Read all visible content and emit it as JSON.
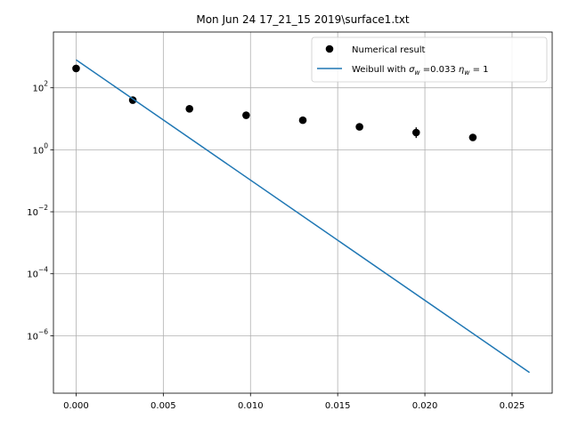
{
  "chart_data": {
    "type": "scatter",
    "title": "Mon Jun 24 17_21_15 2019\\surface1.txt",
    "xlabel": "",
    "ylabel": "",
    "y_scale": "log",
    "xlim": [
      -0.0013,
      0.0273
    ],
    "ylim": [
      1.4e-08,
      6300
    ],
    "x_ticks": [
      {
        "value": 0.0,
        "label": "0.000"
      },
      {
        "value": 0.005,
        "label": "0.005"
      },
      {
        "value": 0.01,
        "label": "0.010"
      },
      {
        "value": 0.015,
        "label": "0.015"
      },
      {
        "value": 0.02,
        "label": "0.020"
      },
      {
        "value": 0.025,
        "label": "0.025"
      }
    ],
    "y_ticks": [
      {
        "exp": 2,
        "base": "10",
        "exponent_label": "2"
      },
      {
        "exp": 0,
        "base": "10",
        "exponent_label": "0"
      },
      {
        "exp": -2,
        "base": "10",
        "exponent_label": "−2"
      },
      {
        "exp": -4,
        "base": "10",
        "exponent_label": "−4"
      },
      {
        "exp": -6,
        "base": "10",
        "exponent_label": "−6"
      }
    ],
    "grid": true,
    "legend_position": "top-right",
    "series": [
      {
        "name": "Numerical result",
        "kind": "points",
        "color": "#000000",
        "points": [
          {
            "x": 0.0,
            "y": 420,
            "err_low": 380,
            "err_high": 470
          },
          {
            "x": 0.00325,
            "y": 40,
            "err_low": 35,
            "err_high": 46
          },
          {
            "x": 0.0065,
            "y": 21,
            "err_low": 19,
            "err_high": 23
          },
          {
            "x": 0.00975,
            "y": 13,
            "err_low": 10.5,
            "err_high": 16
          },
          {
            "x": 0.013,
            "y": 9,
            "err_low": 7.2,
            "err_high": 11
          },
          {
            "x": 0.01625,
            "y": 5.5,
            "err_low": 5.0,
            "err_high": 6.0
          },
          {
            "x": 0.0195,
            "y": 3.6,
            "err_low": 2.4,
            "err_high": 5.3
          },
          {
            "x": 0.02275,
            "y": 2.5,
            "err_low": 2.25,
            "err_high": 2.75
          }
        ]
      },
      {
        "name": "Weibull with σ_w =0.033 η_w = 1",
        "kind": "line",
        "color": "#1f77b4",
        "x": [
          0.0,
          0.026
        ],
        "y": [
          800,
          6.5e-08
        ]
      }
    ],
    "legend": {
      "entries": [
        {
          "label": "Numerical result"
        },
        {
          "prefix": "Weibull with ",
          "sigma": "σ",
          "sigma_sub": "w",
          "mid": " =0.033 ",
          "eta": "η",
          "eta_sub": "w",
          "suffix": " = 1"
        }
      ]
    }
  }
}
